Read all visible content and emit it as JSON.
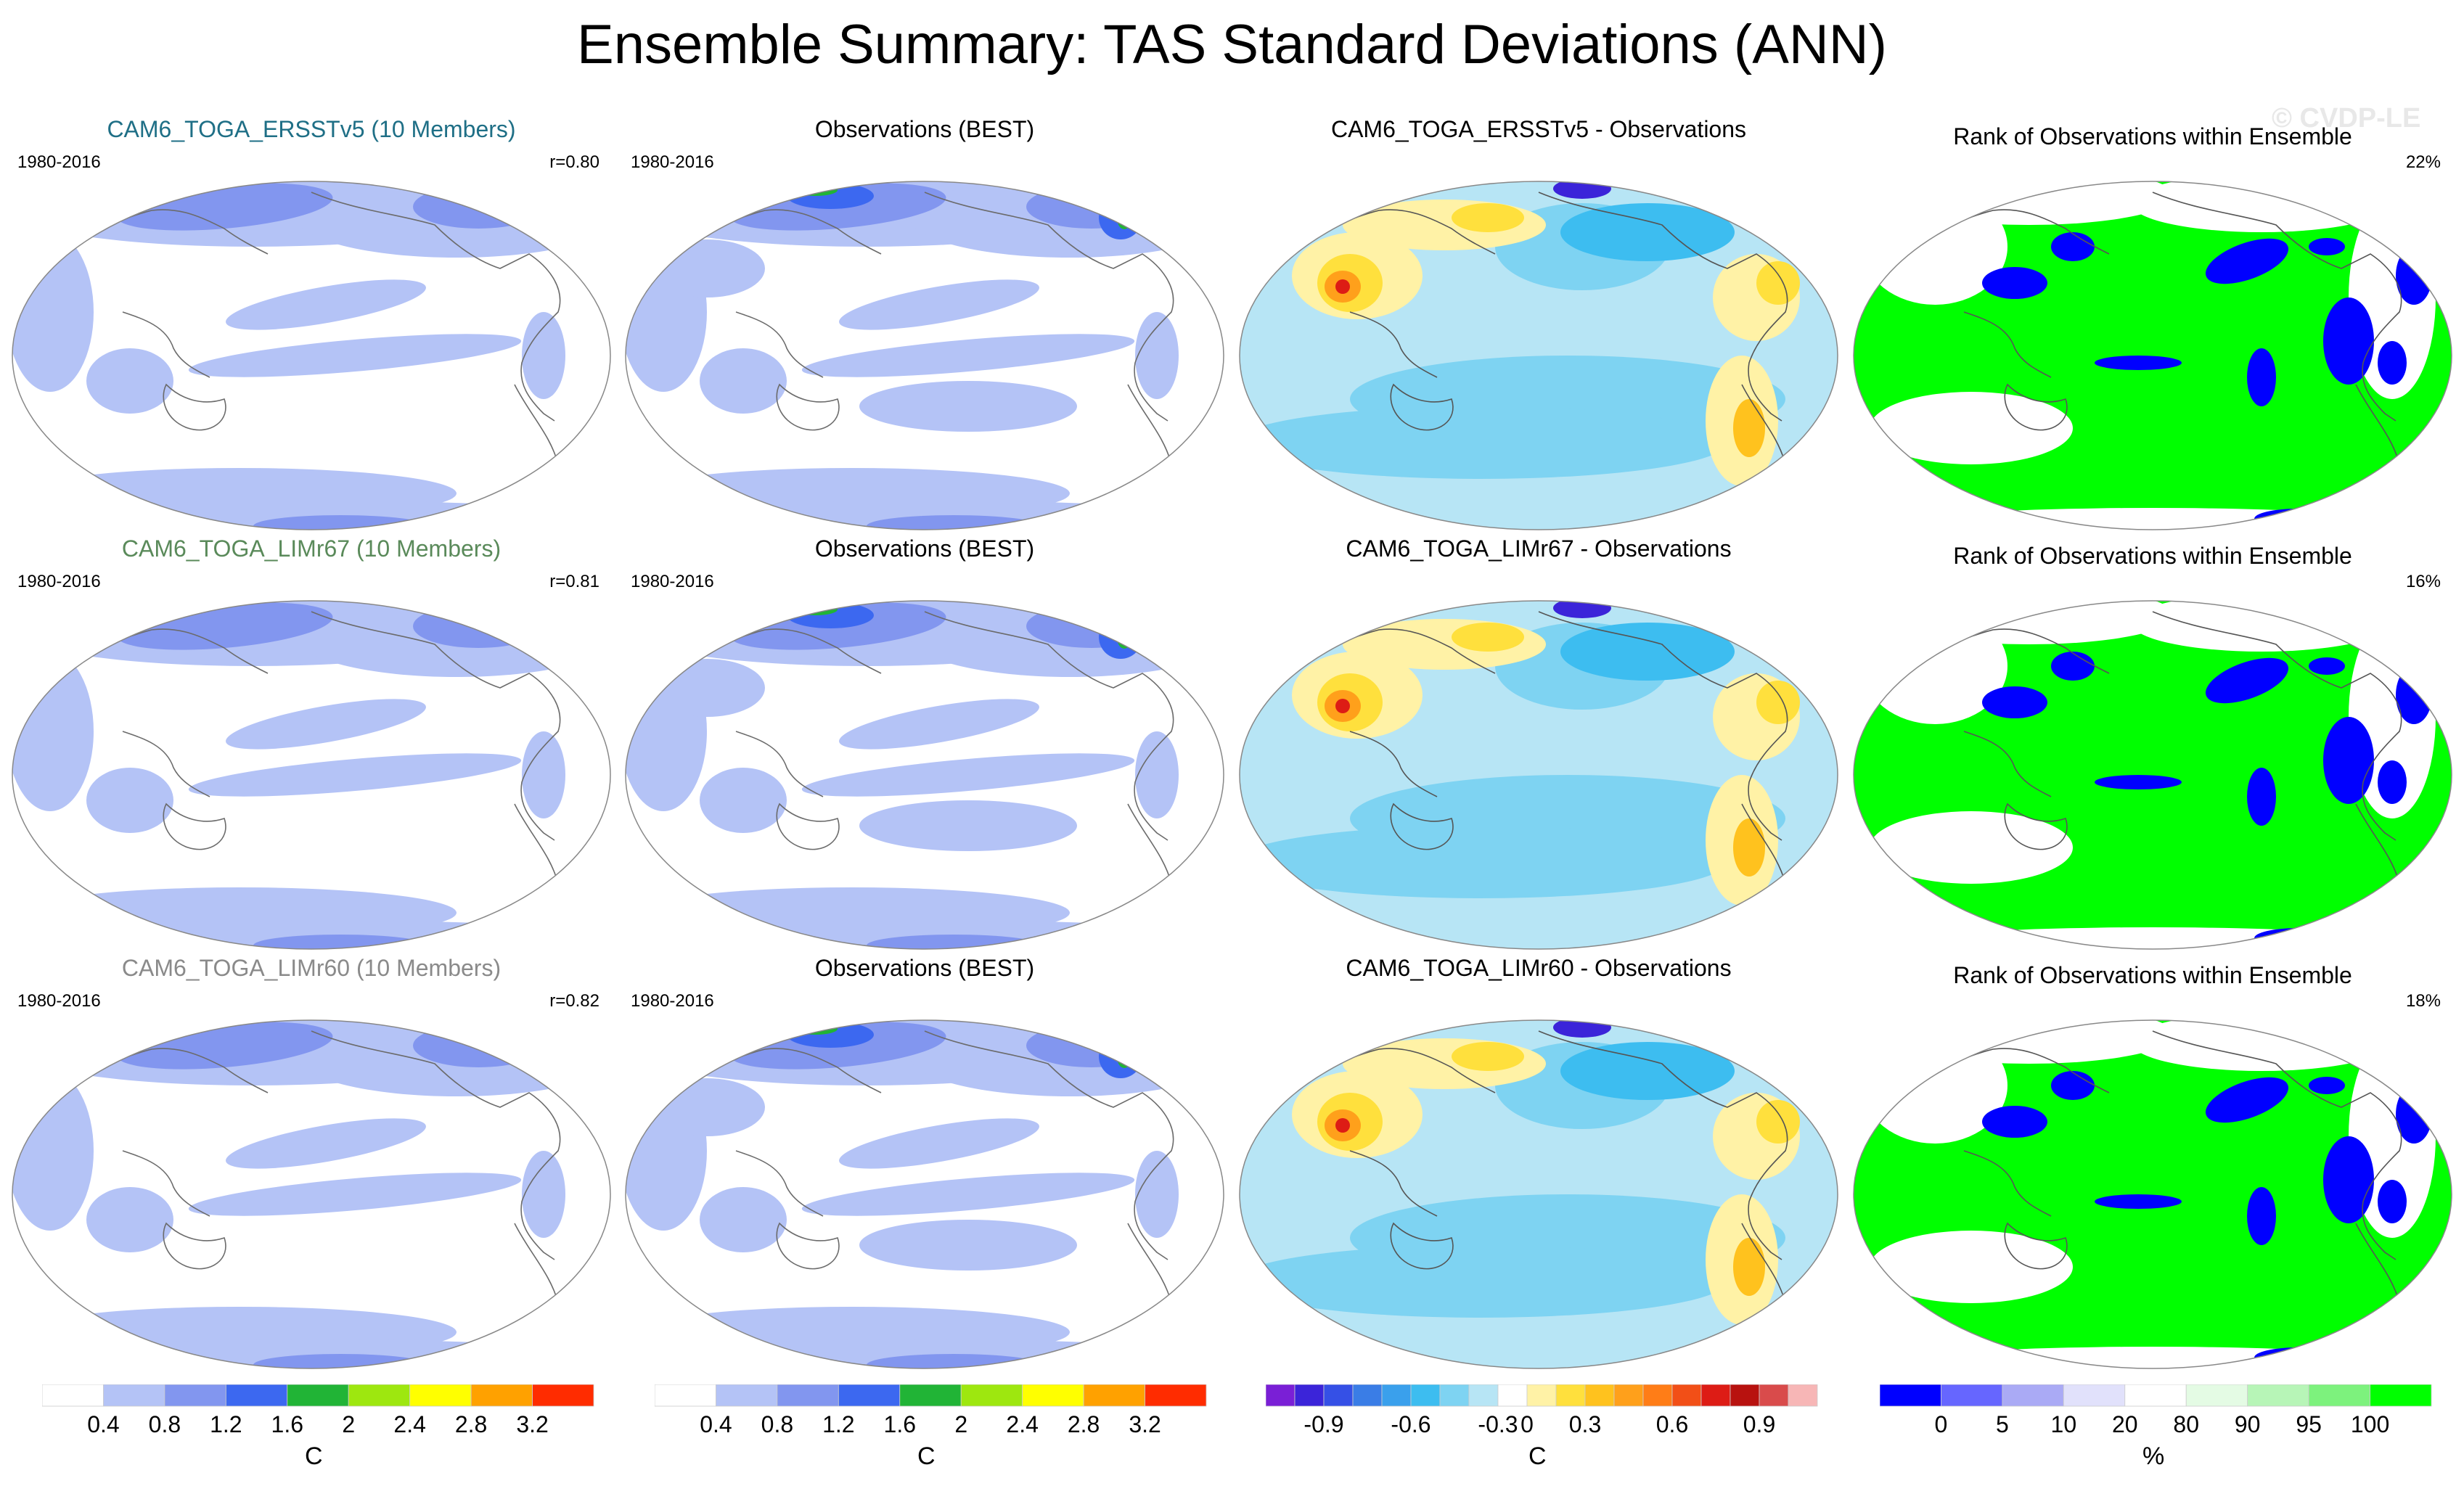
{
  "title": "Ensemble Summary: TAS Standard Deviations (ANN)",
  "watermark": "© CVDP-LE",
  "rows": [
    {
      "model": {
        "title": "CAM6_TOGA_ERSSTv5 (10 Members)",
        "title_color": "#1f6f86",
        "years": "1980-2016",
        "corr": "r=0.80"
      },
      "obs": {
        "title": "Observations (BEST)",
        "years": "1980-2016"
      },
      "diff": {
        "title": "CAM6_TOGA_ERSSTv5 - Observations"
      },
      "rank": {
        "title": "Rank of Observations within Ensemble",
        "pct": "22%"
      }
    },
    {
      "model": {
        "title": "CAM6_TOGA_LIMr67 (10 Members)",
        "title_color": "#5a8a5a",
        "years": "1980-2016",
        "corr": "r=0.81"
      },
      "obs": {
        "title": "Observations (BEST)",
        "years": "1980-2016"
      },
      "diff": {
        "title": "CAM6_TOGA_LIMr67 - Observations"
      },
      "rank": {
        "title": "Rank of Observations within Ensemble",
        "pct": "16%"
      }
    },
    {
      "model": {
        "title": "CAM6_TOGA_LIMr60 (10 Members)",
        "title_color": "#8a8a8a",
        "years": "1980-2016",
        "corr": "r=0.82"
      },
      "obs": {
        "title": "Observations (BEST)",
        "years": "1980-2016"
      },
      "diff": {
        "title": "CAM6_TOGA_LIMr60 - Observations"
      },
      "rank": {
        "title": "Rank of Observations within Ensemble",
        "pct": "18%"
      }
    }
  ],
  "colorbars": [
    {
      "id": "sd1",
      "unit": "C",
      "colors": [
        "#ffffff",
        "#b4c3f6",
        "#8296ef",
        "#3c68f0",
        "#21b436",
        "#9ee70f",
        "#ffff00",
        "#ffa100",
        "#ff2c00"
      ],
      "ticks": [
        "0.4",
        "0.8",
        "1.2",
        "1.6",
        "2",
        "2.4",
        "2.8",
        "3.2"
      ]
    },
    {
      "id": "sd2",
      "unit": "C",
      "colors": [
        "#ffffff",
        "#b4c3f6",
        "#8296ef",
        "#3c68f0",
        "#21b436",
        "#9ee70f",
        "#ffff00",
        "#ffa100",
        "#ff2c00"
      ],
      "ticks": [
        "0.4",
        "0.8",
        "1.2",
        "1.6",
        "2",
        "2.4",
        "2.8",
        "3.2"
      ]
    },
    {
      "id": "diff",
      "unit": "C",
      "colors": [
        "#7a1fd6",
        "#3b24d9",
        "#3550e6",
        "#3a7de6",
        "#3aa0ec",
        "#3dbdf0",
        "#7ed3f2",
        "#b7e5f5",
        "#ffffff",
        "#fff2a6",
        "#ffe03d",
        "#ffc21e",
        "#ffa01b",
        "#ff7d17",
        "#f24f17",
        "#dd1c15",
        "#b8120f",
        "#d94b4b",
        "#f7b6b6"
      ],
      "ticks": [
        "-0.9",
        "-0.6",
        "-0.3",
        "0",
        "0.3",
        "0.6",
        "0.9"
      ]
    },
    {
      "id": "rank",
      "unit": "%",
      "colors": [
        "#0000ff",
        "#6666ff",
        "#aaaaf5",
        "#e1e1fb",
        "#ffffff",
        "#e4fbe4",
        "#b7f5b7",
        "#7df27d",
        "#00ff00"
      ],
      "ticks": [
        "0",
        "5",
        "10",
        "20",
        "80",
        "90",
        "95",
        "100"
      ]
    }
  ]
}
